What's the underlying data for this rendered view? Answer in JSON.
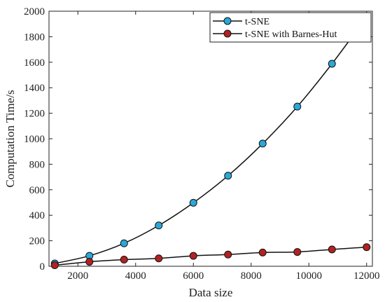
{
  "chart_data": {
    "type": "line",
    "title": "",
    "xlabel": "Data size",
    "ylabel": "Computation Time/s",
    "xlim": [
      1000,
      12200
    ],
    "ylim": [
      0,
      2000
    ],
    "xticks": [
      2000,
      4000,
      6000,
      8000,
      10000,
      12000
    ],
    "yticks": [
      0,
      200,
      400,
      600,
      800,
      1000,
      1200,
      1400,
      1600,
      1800,
      2000
    ],
    "grid": false,
    "legend_position": "top-right",
    "series": [
      {
        "name": "t-SNE",
        "color": "#2aa8d8",
        "x": [
          1200,
          2400,
          3600,
          4800,
          6000,
          7200,
          8400,
          9600,
          10800,
          12000
        ],
        "y": [
          22,
          82,
          180,
          320,
          498,
          710,
          962,
          1252,
          1588,
          1955
        ]
      },
      {
        "name": "t-SNE with Barnes-Hut",
        "color": "#b22222",
        "x": [
          1200,
          2400,
          3600,
          4800,
          6000,
          7200,
          8400,
          9600,
          10800,
          12000
        ],
        "y": [
          8,
          35,
          52,
          62,
          82,
          92,
          108,
          112,
          132,
          150
        ]
      }
    ]
  }
}
